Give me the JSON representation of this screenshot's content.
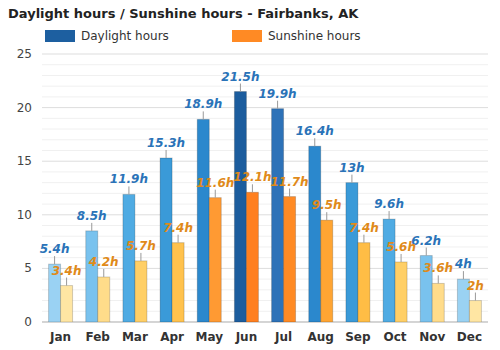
{
  "chart_data": {
    "type": "bar",
    "title": "Daylight hours / Sunshine hours - Fairbanks, AK",
    "categories": [
      "Jan",
      "Feb",
      "Mar",
      "Apr",
      "May",
      "Jun",
      "Jul",
      "Aug",
      "Sep",
      "Oct",
      "Nov",
      "Dec"
    ],
    "series": [
      {
        "name": "Daylight hours",
        "color": "#1d5fa0",
        "colors": [
          "#9ad2f3",
          "#79c2ee",
          "#4fabe3",
          "#3a9ad8",
          "#2b88cd",
          "#1c5d9e",
          "#2d72b8",
          "#2b88cd",
          "#3a9ad8",
          "#4fabe3",
          "#79c2ee",
          "#9ad2f3"
        ],
        "values": [
          5.4,
          8.5,
          11.9,
          15.3,
          18.9,
          21.5,
          19.9,
          16.4,
          13,
          9.6,
          6.2,
          4
        ],
        "value_labels": [
          "5.4h",
          "8.5h",
          "11.9h",
          "15.3h",
          "18.9h",
          "21.5h",
          "19.9h",
          "16.4h",
          "13h",
          "9.6h",
          "6.2h",
          "4h"
        ]
      },
      {
        "name": "Sunshine hours",
        "color": "#ff8a24",
        "colors": [
          "#ffe6a3",
          "#ffdc8a",
          "#ffcf66",
          "#ffc24d",
          "#ff9a33",
          "#ff7f1f",
          "#ff8a24",
          "#ffa533",
          "#ffbd45",
          "#ffcf66",
          "#ffdc8a",
          "#ffe6a3"
        ],
        "values": [
          3.4,
          4.2,
          5.7,
          7.4,
          11.6,
          12.1,
          11.7,
          9.5,
          7.4,
          5.6,
          3.6,
          2
        ],
        "value_labels": [
          "3.4h",
          "4.2h",
          "5.7h",
          "7.4h",
          "11.6h",
          "12.1h",
          "11.7h",
          "9.5h",
          "7.4h",
          "5.6h",
          "3.6h",
          "2h"
        ]
      }
    ],
    "ylim": [
      0,
      25
    ],
    "yticks": [
      0,
      5,
      10,
      15,
      20,
      25
    ],
    "grid": true,
    "legend": "top",
    "data_labels": true
  }
}
